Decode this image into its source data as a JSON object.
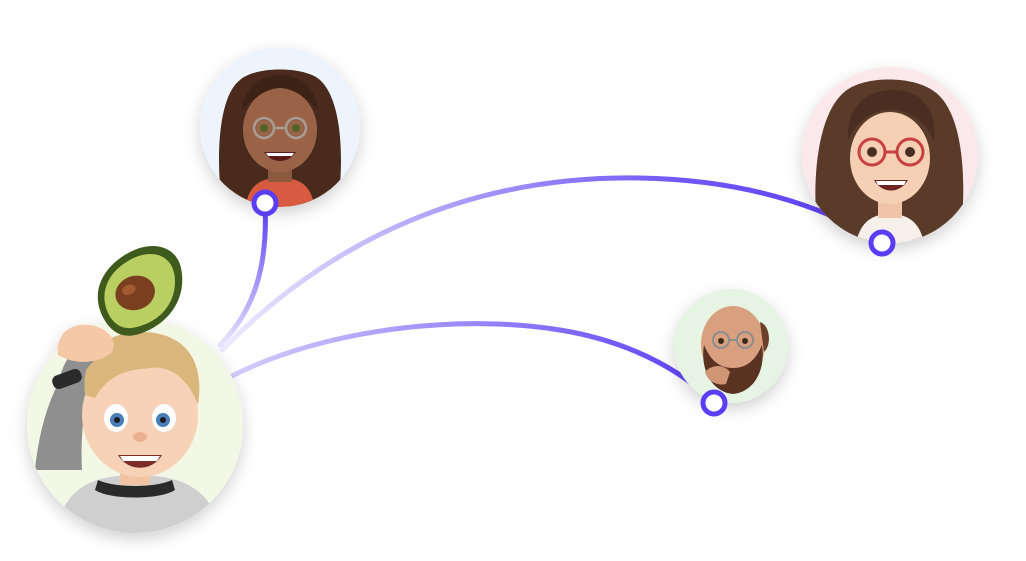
{
  "diagram": {
    "type": "avatar-connection-graph",
    "accent_color": "#5b3df5",
    "connector_fill": "#ffffff",
    "hub": {
      "name": "boy-avatar",
      "bg_color": "#f3f7e6",
      "prop_icon": "avocado-icon"
    },
    "nodes": [
      {
        "name": "girl-braids-glasses-avatar",
        "bg_color": "#eef4fd"
      },
      {
        "name": "woman-red-glasses-avatar",
        "bg_color": "#fbe8ea"
      },
      {
        "name": "bald-bearded-man-avatar",
        "bg_color": "#e5f4e3"
      }
    ]
  }
}
